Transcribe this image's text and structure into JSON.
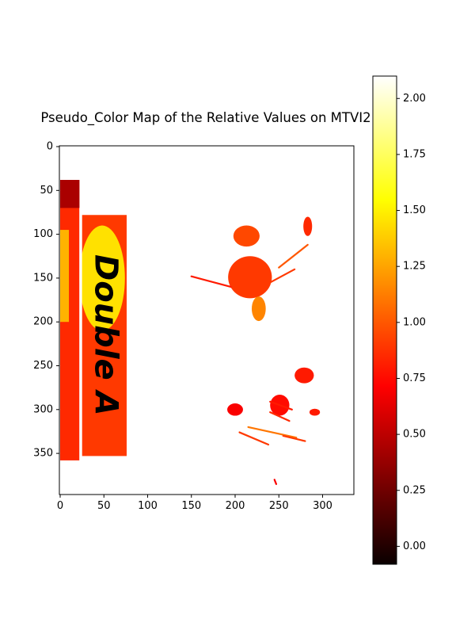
{
  "chart_data": {
    "type": "heatmap",
    "title": "Pseudo_Color Map of the Relative Values on MTVI2",
    "colormap": "hot",
    "x_range": [
      0,
      335
    ],
    "y_range": [
      0,
      398
    ],
    "y_axis_inverted": true,
    "x_ticks": [
      0,
      50,
      100,
      150,
      200,
      250,
      300
    ],
    "y_ticks": [
      0,
      50,
      100,
      150,
      200,
      250,
      300,
      350
    ],
    "x_tick_labels": [
      "0",
      "50",
      "100",
      "150",
      "200",
      "250",
      "300"
    ],
    "y_tick_labels": [
      "0",
      "50",
      "100",
      "150",
      "200",
      "250",
      "300",
      "350"
    ],
    "colorbar": {
      "range": [
        -0.08,
        2.1
      ],
      "ticks": [
        0.0,
        0.25,
        0.5,
        0.75,
        1.0,
        1.25,
        1.5,
        1.75,
        2.0
      ],
      "tick_labels": [
        "0.00",
        "0.25",
        "0.50",
        "0.75",
        "1.00",
        "1.25",
        "1.50",
        "1.75",
        "2.00"
      ]
    },
    "image_text": "Double A",
    "regions": [
      {
        "name": "left-strip",
        "shape": "rect",
        "x": [
          0,
          22
        ],
        "y": [
          38,
          358
        ],
        "value": 0.85
      },
      {
        "name": "left-strip-top",
        "shape": "rect",
        "x": [
          0,
          22
        ],
        "y": [
          38,
          70
        ],
        "value": 0.45
      },
      {
        "name": "left-strip-bright",
        "shape": "rect",
        "x": [
          0,
          10
        ],
        "y": [
          95,
          200
        ],
        "value": 1.3
      },
      {
        "name": "package",
        "shape": "rect",
        "x": [
          25,
          76
        ],
        "y": [
          78,
          353
        ],
        "value": 0.9
      },
      {
        "name": "package-bright",
        "shape": "ellipse",
        "cx": 48,
        "cy": 150,
        "rx": 26,
        "ry": 60,
        "value": 1.45
      },
      {
        "name": "leaf-a",
        "shape": "ellipse",
        "cx": 213,
        "cy": 102,
        "rx": 15,
        "ry": 12,
        "value": 0.95
      },
      {
        "name": "leaf-b",
        "shape": "ellipse",
        "cx": 217,
        "cy": 149,
        "rx": 25,
        "ry": 24,
        "value": 0.9
      },
      {
        "name": "leaf-c",
        "shape": "ellipse",
        "cx": 227,
        "cy": 185,
        "rx": 8,
        "ry": 14,
        "value": 1.15
      },
      {
        "name": "leaf-d",
        "shape": "ellipse",
        "cx": 283,
        "cy": 91,
        "rx": 5,
        "ry": 11,
        "value": 0.85
      },
      {
        "name": "leaf-e",
        "shape": "ellipse",
        "cx": 279,
        "cy": 261,
        "rx": 11,
        "ry": 9,
        "value": 0.8
      },
      {
        "name": "leaf-f",
        "shape": "ellipse",
        "cx": 251,
        "cy": 295,
        "rx": 11,
        "ry": 12,
        "value": 0.75
      },
      {
        "name": "leaf-g",
        "shape": "ellipse",
        "cx": 200,
        "cy": 300,
        "rx": 9,
        "ry": 7,
        "value": 0.7
      },
      {
        "name": "leaf-h",
        "shape": "ellipse",
        "cx": 291,
        "cy": 303,
        "rx": 6,
        "ry": 4,
        "value": 0.8
      }
    ],
    "streaks": [
      {
        "from": [
          250,
          138
        ],
        "to": [
          283,
          112
        ],
        "value": 1.0
      },
      {
        "from": [
          240,
          155
        ],
        "to": [
          268,
          140
        ],
        "value": 0.9
      },
      {
        "from": [
          150,
          148
        ],
        "to": [
          195,
          160
        ],
        "value": 0.8
      },
      {
        "from": [
          215,
          320
        ],
        "to": [
          270,
          332
        ],
        "value": 1.1
      },
      {
        "from": [
          205,
          326
        ],
        "to": [
          238,
          340
        ],
        "value": 0.9
      },
      {
        "from": [
          240,
          303
        ],
        "to": [
          262,
          313
        ],
        "value": 0.85
      },
      {
        "from": [
          240,
          291
        ],
        "to": [
          265,
          300
        ],
        "value": 0.8
      },
      {
        "from": [
          255,
          330
        ],
        "to": [
          280,
          336
        ],
        "value": 0.9
      },
      {
        "from": [
          245,
          380
        ],
        "to": [
          247,
          385
        ],
        "value": 0.7
      }
    ]
  }
}
